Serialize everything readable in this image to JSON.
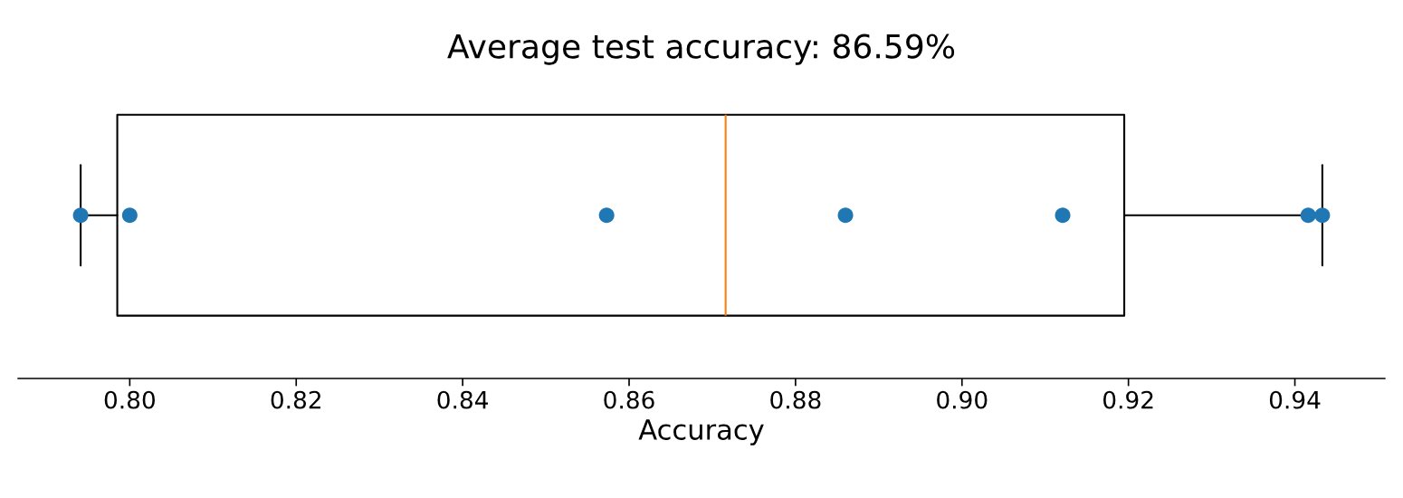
{
  "chart_data": {
    "type": "box",
    "orientation": "horizontal",
    "title": "Average test accuracy: 86.59%",
    "xlabel": "Accuracy",
    "categories": [
      null
    ],
    "boxes": [
      {
        "low": 0.7941,
        "q1": 0.7985,
        "median": 0.8716,
        "q3": 0.9195,
        "high": 0.9433
      }
    ],
    "series": [
      {
        "type": "scatter",
        "color": "#1f77b4",
        "x": [
          null,
          null,
          null,
          null,
          null,
          null,
          null
        ],
        "values": [
          0.7941,
          0.8,
          0.8573,
          0.886,
          0.9121,
          0.9416,
          0.9433
        ]
      }
    ],
    "xlim": [
      0.7866,
      0.9508
    ],
    "xticks": [
      {
        "value": 0.8,
        "label": "0.80"
      },
      {
        "value": 0.82,
        "label": "0.82"
      },
      {
        "value": 0.84,
        "label": "0.84"
      },
      {
        "value": 0.86,
        "label": "0.86"
      },
      {
        "value": 0.88,
        "label": "0.88"
      },
      {
        "value": 0.9,
        "label": "0.90"
      },
      {
        "value": 0.92,
        "label": "0.92"
      },
      {
        "value": 0.94,
        "label": "0.94"
      }
    ],
    "tick_labels": "x",
    "grid": false,
    "legend": false
  }
}
